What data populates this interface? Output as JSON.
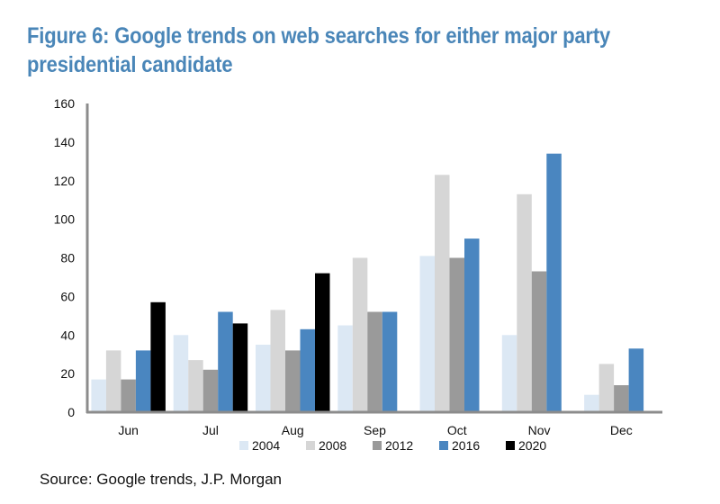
{
  "title": "Figure 6: Google trends on web searches for either major party presidential candidate",
  "title_color": "#4a86b8",
  "source": "Source: Google trends, J.P. Morgan",
  "chart_data": {
    "type": "bar",
    "title": "Figure 6: Google trends on web searches for either major party presidential candidate",
    "xlabel": "",
    "ylabel": "",
    "categories": [
      "Jun",
      "Jul",
      "Aug",
      "Sep",
      "Oct",
      "Nov",
      "Dec"
    ],
    "ylim": [
      0,
      160
    ],
    "yticks": [
      0,
      20,
      40,
      60,
      80,
      100,
      120,
      140,
      160
    ],
    "grid": false,
    "legend_position": "bottom",
    "series": [
      {
        "name": "2004",
        "color": "#dce8f4",
        "values": [
          17,
          40,
          35,
          45,
          81,
          40,
          9
        ]
      },
      {
        "name": "2008",
        "color": "#d6d6d6",
        "values": [
          32,
          27,
          53,
          80,
          123,
          113,
          25
        ]
      },
      {
        "name": "2012",
        "color": "#9a9a9a",
        "values": [
          17,
          22,
          32,
          52,
          80,
          73,
          14
        ]
      },
      {
        "name": "2016",
        "color": "#4a86c0",
        "values": [
          32,
          52,
          43,
          52,
          90,
          134,
          33
        ]
      },
      {
        "name": "2020",
        "color": "#000000",
        "values": [
          57,
          46,
          72,
          null,
          null,
          null,
          null
        ]
      }
    ]
  }
}
